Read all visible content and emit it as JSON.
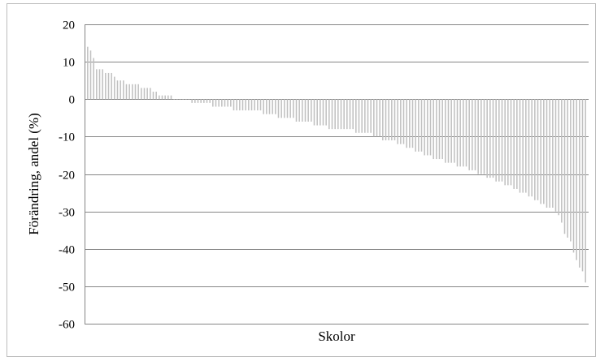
{
  "chart_data": {
    "type": "bar",
    "title": "",
    "xlabel": "Skolor",
    "ylabel": "Förändring, andel (%)",
    "ylim": [
      -60,
      20
    ],
    "yticks": [
      20,
      10,
      0,
      -10,
      -20,
      -30,
      -40,
      -50,
      -60
    ],
    "grid": true,
    "legend": "none",
    "bar_color": "#c0c0c0",
    "grid_color": "#868686",
    "series": [
      {
        "values": [
          14,
          13,
          11,
          8,
          8,
          8,
          7,
          7,
          7,
          6,
          5,
          5,
          5,
          4,
          4,
          4,
          4,
          4,
          3,
          3,
          3,
          3,
          2,
          2,
          1,
          1,
          1,
          1,
          1,
          0,
          0,
          0,
          0,
          0,
          0,
          -1,
          -1,
          -1,
          -1,
          -1,
          -1,
          -1,
          -2,
          -2,
          -2,
          -2,
          -2,
          -2,
          -2,
          -3,
          -3,
          -3,
          -3,
          -3,
          -3,
          -3,
          -3,
          -3,
          -3,
          -4,
          -4,
          -4,
          -4,
          -4,
          -5,
          -5,
          -5,
          -5,
          -5,
          -5,
          -6,
          -6,
          -6,
          -6,
          -6,
          -6,
          -7,
          -7,
          -7,
          -7,
          -7,
          -8,
          -8,
          -8,
          -8,
          -8,
          -8,
          -8,
          -8,
          -8,
          -9,
          -9,
          -9,
          -9,
          -9,
          -9,
          -10,
          -10,
          -10,
          -11,
          -11,
          -11,
          -11,
          -11,
          -12,
          -12,
          -12,
          -13,
          -13,
          -13,
          -14,
          -14,
          -14,
          -15,
          -15,
          -15,
          -16,
          -16,
          -16,
          -16,
          -17,
          -17,
          -17,
          -17,
          -18,
          -18,
          -18,
          -18,
          -19,
          -19,
          -19,
          -20,
          -20,
          -20,
          -21,
          -21,
          -21,
          -22,
          -22,
          -22,
          -23,
          -23,
          -23,
          -24,
          -24,
          -25,
          -25,
          -25,
          -26,
          -26,
          -27,
          -27,
          -28,
          -28,
          -29,
          -29,
          -29,
          -30,
          -31,
          -33,
          -36,
          -37,
          -38,
          -41,
          -43,
          -45,
          -46,
          -49
        ]
      }
    ]
  }
}
